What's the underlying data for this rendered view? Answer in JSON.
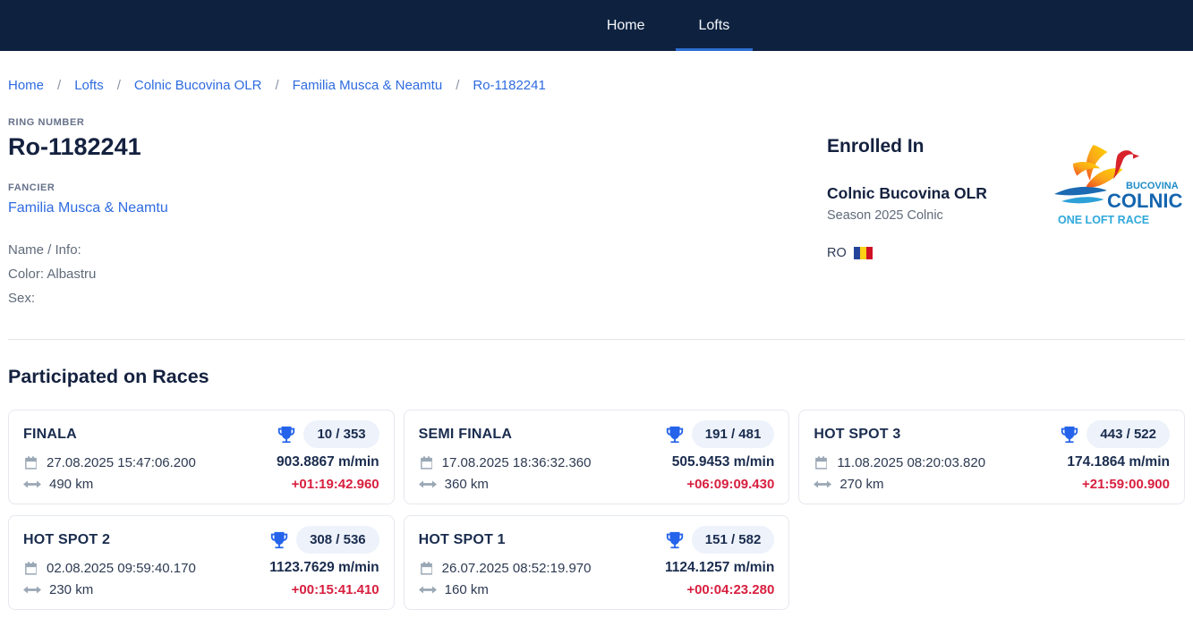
{
  "navbar": {
    "tabs": [
      {
        "label": "Home",
        "active": false
      },
      {
        "label": "Lofts",
        "active": true
      }
    ]
  },
  "breadcrumb": {
    "separator": "/",
    "items": [
      "Home",
      "Lofts",
      "Colnic Bucovina OLR",
      "Familia Musca & Neamtu",
      "Ro-1182241"
    ]
  },
  "pigeon": {
    "ring_label": "RING NUMBER",
    "ring_number": "Ro-1182241",
    "fancier_label": "FANCIER",
    "fancier": "Familia Musca & Neamtu",
    "name_info": "Name / Info:",
    "color": "Color: Albastru",
    "sex": "Sex:"
  },
  "enrollment": {
    "title": "Enrolled In",
    "loft": "Colnic Bucovina OLR",
    "season": "Season 2025 Colnic",
    "country_code": "RO",
    "flag_colors": [
      "#24449c",
      "#fcd116",
      "#ce1126"
    ],
    "logo": {
      "line1": "BUCOVINA",
      "line2": "COLNIC",
      "line3": "ONE LOFT RACE"
    }
  },
  "races": {
    "title": "Participated on Races",
    "items": [
      {
        "name": "FINALA",
        "rank": "10 / 353",
        "date": "27.08.2025 15:47:06.200",
        "distance": "490 km",
        "speed": "903.8867 m/min",
        "time_diff": "+01:19:42.960"
      },
      {
        "name": "SEMI FINALA",
        "rank": "191 / 481",
        "date": "17.08.2025 18:36:32.360",
        "distance": "360 km",
        "speed": "505.9453 m/min",
        "time_diff": "+06:09:09.430"
      },
      {
        "name": "HOT SPOT 3",
        "rank": "443 / 522",
        "date": "11.08.2025 08:20:03.820",
        "distance": "270 km",
        "speed": "174.1864 m/min",
        "time_diff": "+21:59:00.900"
      },
      {
        "name": "HOT SPOT 2",
        "rank": "308 / 536",
        "date": "02.08.2025 09:59:40.170",
        "distance": "230 km",
        "speed": "1123.7629 m/min",
        "time_diff": "+00:15:41.410"
      },
      {
        "name": "HOT SPOT 1",
        "rank": "151 / 582",
        "date": "26.07.2025 08:52:19.970",
        "distance": "160 km",
        "speed": "1124.1257 m/min",
        "time_diff": "+00:04:23.280"
      }
    ]
  },
  "colors": {
    "navbar_bg": "#0e2240",
    "accent_blue": "#2e6be0",
    "tab_underline": "#2e6fd2",
    "heading_navy": "#14213f",
    "trophy_blue": "#2563eb",
    "pill_bg": "#edf2fb",
    "negative_red": "#d81f3f"
  }
}
